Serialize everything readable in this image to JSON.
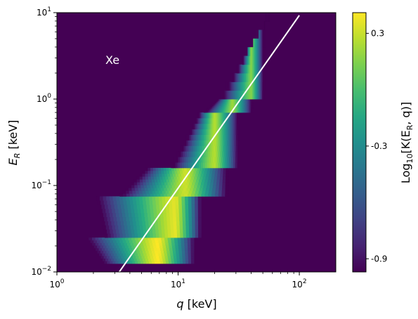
{
  "chart_data": {
    "type": "heatmap",
    "title": "",
    "annotation": "Xe",
    "x_scale": "log",
    "y_scale": "log",
    "xlim": [
      1,
      200
    ],
    "ylim": [
      0.01,
      10
    ],
    "grid": false,
    "x_ticks": [
      {
        "value": 1,
        "base": "10",
        "exp": "0"
      },
      {
        "value": 10,
        "base": "10",
        "exp": "1"
      },
      {
        "value": 100,
        "base": "10",
        "exp": "2"
      }
    ],
    "y_ticks": [
      {
        "value": 0.01,
        "base": "10",
        "exp": "−2"
      },
      {
        "value": 0.1,
        "base": "10",
        "exp": "−1"
      },
      {
        "value": 1,
        "base": "10",
        "exp": "0"
      },
      {
        "value": 10,
        "base": "10",
        "exp": "1"
      }
    ],
    "xlabel": {
      "symbol": "q",
      "unit": "[keV]"
    },
    "ylabel": {
      "symbol": "E",
      "sub": "R",
      "unit": "[keV]"
    },
    "colorbar": {
      "label": {
        "pre": "Log",
        "sub": "10",
        "post": "[K(E",
        "sub2": "R",
        "tail": ", q)]"
      },
      "ticks": [
        {
          "value": 0.3,
          "label": "0.3"
        },
        {
          "value": -0.3,
          "label": "-0.3"
        },
        {
          "value": -0.9,
          "label": "-0.9"
        }
      ],
      "range": [
        -0.97,
        0.41
      ],
      "colormap": "viridis"
    },
    "bands": [
      {
        "e_low": 0.0125,
        "e_high": 0.025,
        "q_min": 2.5,
        "q_max": 13.5,
        "q_peak": 6.8,
        "q_lower_at_top": 1.8
      },
      {
        "e_low": 0.025,
        "e_high": 0.075,
        "q_min": 2.5,
        "q_max": 15.5,
        "q_peak": 9.5,
        "q_lower_at_top": 2.1
      },
      {
        "e_low": 0.075,
        "e_high": 0.16,
        "q_min": 3.2,
        "q_max": 26.0,
        "q_peak": 11.5,
        "q_lower_at_top": 5.5
      },
      {
        "e_low": 0.16,
        "e_high": 0.7,
        "q_min": 8.5,
        "q_max": 32.0,
        "q_peak": 20.0,
        "q_lower_at_top": 15.0
      },
      {
        "e_low": 0.7,
        "e_high": 1.0,
        "q_min": 16.0,
        "q_max": 42.0,
        "q_peak": 28.0,
        "q_lower_at_top": 21.0
      },
      {
        "e_low": 1.0,
        "e_high": 10.0,
        "q_min": 21.0,
        "q_max": 52.0,
        "q_peak": 40.0,
        "q_lower_at_top": 60.0
      }
    ],
    "series": [
      {
        "type": "line",
        "color": "#ffffff",
        "x": [
          3.27,
          100
        ],
        "y": [
          0.01,
          9.3
        ]
      }
    ],
    "colors": {
      "background": "#440154",
      "line": "#ffffff"
    }
  }
}
